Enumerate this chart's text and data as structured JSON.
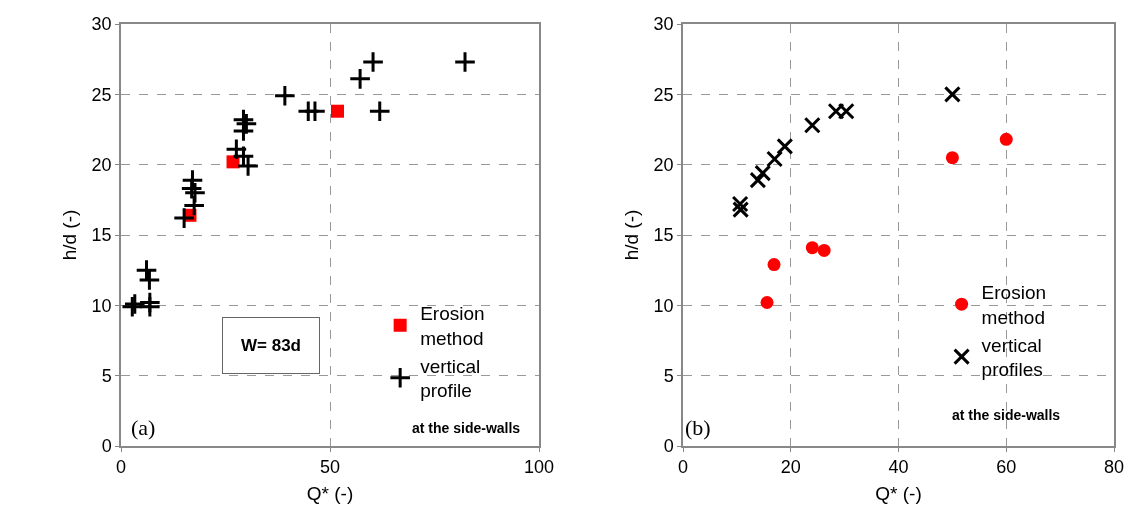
{
  "chart_data": [
    {
      "type": "scatter",
      "xlabel": "Q* (-)",
      "ylabel": "h/d (-)",
      "xlim": [
        0,
        100
      ],
      "xticks": [
        0,
        50,
        100
      ],
      "ylim": [
        0,
        30
      ],
      "yticks": [
        0,
        5,
        10,
        15,
        20,
        25,
        30
      ],
      "grid": true,
      "legend": "bottom right",
      "annotations": [
        "W= 83d",
        "at the side-walls",
        "(a)"
      ],
      "series": [
        {
          "name": "Erosion method",
          "color": "#ff0000",
          "marker": "square",
          "x": [
            16.5,
            26.8,
            51.8
          ],
          "values": [
            16.4,
            20.2,
            23.8
          ]
        },
        {
          "name": "vertical profile",
          "color": "#000000",
          "marker": "cross",
          "x": [
            2.7,
            3.3,
            6.9,
            6.9,
            6.1,
            6.8,
            15.1,
            17.5,
            17.1,
            16.9,
            17.7,
            27.6,
            29.3,
            30.4,
            29.3,
            30.0,
            29.3,
            39.2,
            44.8,
            46.4,
            57.2,
            60.3,
            61.9,
            82.3
          ],
          "values": [
            9.9,
            10.1,
            10.2,
            9.9,
            12.5,
            11.8,
            16.2,
            17.1,
            18.9,
            18.3,
            18.0,
            21.1,
            20.6,
            19.9,
            23.2,
            22.9,
            22.4,
            24.9,
            23.8,
            23.8,
            26.1,
            27.3,
            23.8,
            27.3
          ]
        }
      ]
    },
    {
      "type": "scatter",
      "xlabel": "Q* (-)",
      "ylabel": "h/d (-)",
      "xlim": [
        0,
        80
      ],
      "xticks": [
        0,
        20,
        40,
        60,
        80
      ],
      "ylim": [
        0,
        30
      ],
      "yticks": [
        0,
        5,
        10,
        15,
        20,
        25,
        30
      ],
      "grid": true,
      "legend": "bottom right",
      "annotations": [
        "at the side-walls",
        "(b)"
      ],
      "series": [
        {
          "name": "Erosion method",
          "color": "#ff0000",
          "marker": "circle",
          "x": [
            15.6,
            16.9,
            24.0,
            26.2,
            50,
            60
          ],
          "values": [
            10.2,
            12.9,
            14.1,
            13.9,
            20.5,
            21.8
          ]
        },
        {
          "name": "vertical profiles",
          "color": "#000000",
          "marker": "x",
          "x": [
            10.6,
            10.7,
            13.9,
            14.8,
            17.0,
            18.9,
            24.0,
            28.4,
            30.3,
            50
          ],
          "values": [
            17.2,
            16.8,
            18.9,
            19.4,
            20.4,
            21.3,
            22.8,
            23.8,
            23.8,
            25.0
          ]
        }
      ]
    }
  ]
}
